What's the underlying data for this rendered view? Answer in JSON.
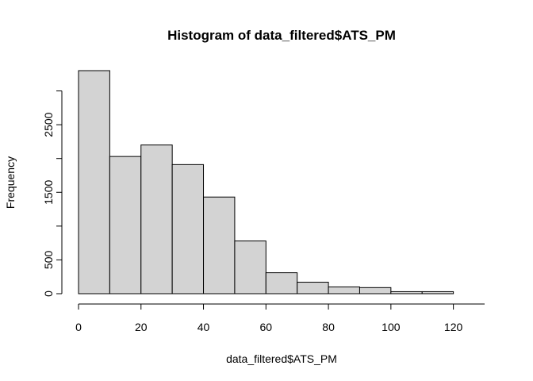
{
  "chart_data": {
    "type": "bar",
    "title": "Histogram of data_filtered$ATS_PM",
    "xlabel": "data_filtered$ATS_PM",
    "ylabel": "Frequency",
    "bin_edges": [
      0,
      10,
      20,
      30,
      40,
      50,
      60,
      70,
      80,
      90,
      100,
      110,
      120
    ],
    "values": [
      3300,
      2030,
      2200,
      1910,
      1430,
      780,
      310,
      170,
      100,
      90,
      30,
      30
    ],
    "xlim": [
      0,
      130
    ],
    "ylim": [
      0,
      3300
    ],
    "x_ticks": [
      "0",
      "20",
      "40",
      "60",
      "80",
      "100",
      "120"
    ],
    "y_ticks": [
      "0",
      "500",
      "1500",
      "2500"
    ],
    "bar_fill": "#d3d3d3",
    "bar_stroke": "#000000",
    "grid": false,
    "legend": "none"
  }
}
